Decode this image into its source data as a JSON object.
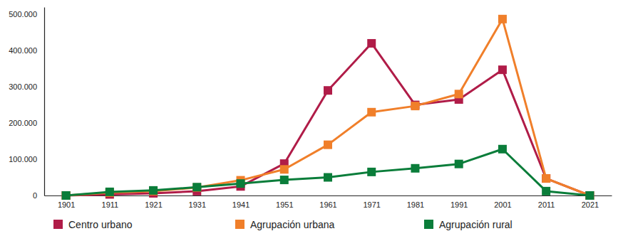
{
  "chart_data": {
    "type": "line",
    "categories": [
      "1901",
      "1911",
      "1921",
      "1931",
      "1941",
      "1951",
      "1961",
      "1971",
      "1981",
      "1991",
      "2001",
      "2011",
      "2021"
    ],
    "ylim": [
      0,
      520000
    ],
    "yticks": [
      0,
      {
        "value": 100000,
        "label": "100.000"
      },
      {
        "value": 200000,
        "label": "200.000"
      },
      {
        "value": 300000,
        "label": "300.000"
      },
      {
        "value": 400000,
        "label": "400.000"
      },
      {
        "value": 500000,
        "label": "500.000"
      }
    ],
    "grid": false,
    "legend": "bottom",
    "marker": "square",
    "series": [
      {
        "name": "Centro urbano",
        "color": "#b01c48",
        "values": [
          0,
          3000,
          6000,
          12000,
          25000,
          88000,
          290000,
          420000,
          250000,
          265000,
          347000,
          47000,
          0
        ]
      },
      {
        "name": "Agrupación urbana",
        "color": "#f07f2a",
        "values": [
          0,
          8000,
          12000,
          22000,
          42000,
          72000,
          140000,
          230000,
          247000,
          280000,
          487000,
          47000,
          0
        ]
      },
      {
        "name": "Agrupación rural",
        "color": "#0a7d3a",
        "values": [
          0,
          10000,
          14000,
          23000,
          33000,
          43000,
          50000,
          65000,
          75000,
          87000,
          128000,
          12000,
          0
        ]
      }
    ]
  }
}
